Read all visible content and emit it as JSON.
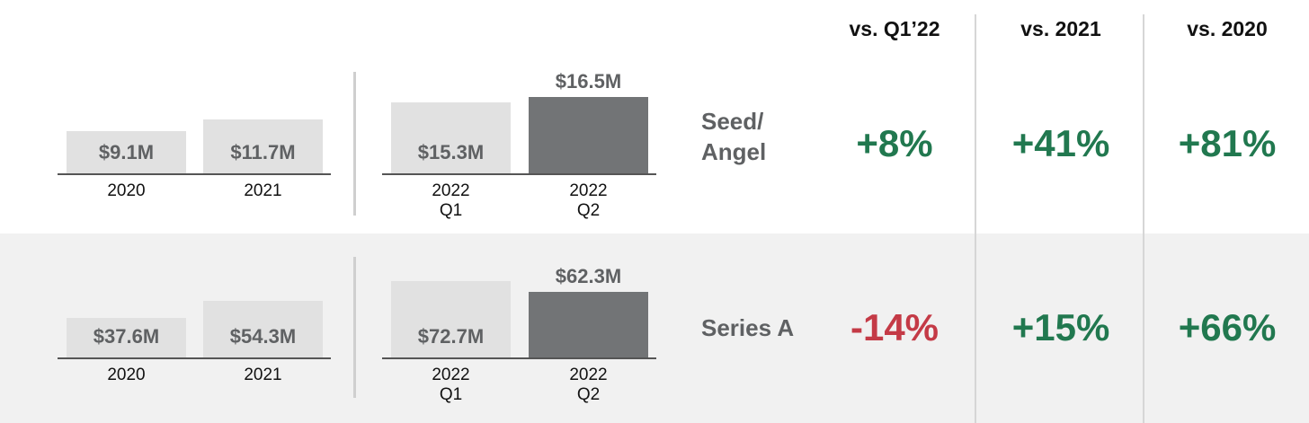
{
  "colors": {
    "positive": "#21784f",
    "negative": "#c43a46",
    "bar_light": "#e1e1e1",
    "bar_dark": "#727476"
  },
  "column_headers": [
    "vs. Q1’22",
    "vs. 2021",
    "vs. 2020"
  ],
  "chart_data": [
    {
      "type": "bar",
      "row_label": "Seed/ Angel",
      "categories": [
        "2020",
        "2021",
        "2022 Q1",
        "2022 Q2"
      ],
      "values": [
        9.1,
        11.7,
        15.3,
        16.5
      ],
      "value_labels": [
        "$9.1M",
        "$11.7M",
        "$15.3M",
        "$16.5M"
      ],
      "unit": "$M",
      "changes": [
        "+8%",
        "+41%",
        "+81%"
      ]
    },
    {
      "type": "bar",
      "row_label": "Series A",
      "categories": [
        "2020",
        "2021",
        "2022 Q1",
        "2022 Q2"
      ],
      "values": [
        37.6,
        54.3,
        72.7,
        62.3
      ],
      "value_labels": [
        "$37.6M",
        "$54.3M",
        "$72.7M",
        "$62.3M"
      ],
      "unit": "$M",
      "changes": [
        "-14%",
        "+15%",
        "+66%"
      ]
    }
  ]
}
